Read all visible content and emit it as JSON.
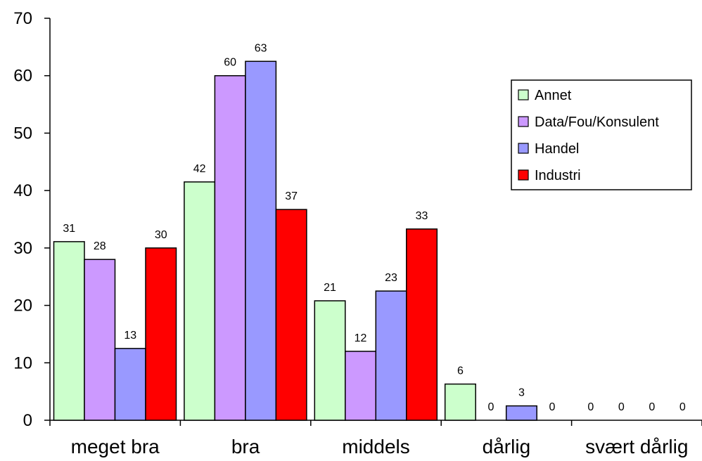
{
  "chart_data": {
    "type": "bar",
    "title": "",
    "xlabel": "",
    "ylabel": "",
    "categories": [
      "meget bra",
      "bra",
      "middels",
      "dårlig",
      "svært dårlig"
    ],
    "ylim": [
      0,
      70
    ],
    "yticks": [
      0,
      10,
      20,
      30,
      40,
      50,
      60,
      70
    ],
    "grid": false,
    "legend_position": "right",
    "series": [
      {
        "name": "Annet",
        "color": "#ccffcc",
        "values": [
          31.1,
          41.5,
          20.8,
          6.3,
          0
        ],
        "labels": [
          "31",
          "42",
          "21",
          "6",
          "0"
        ]
      },
      {
        "name": "Data/Fou/Konsulent",
        "color": "#cc99ff",
        "values": [
          28.0,
          60.0,
          12.0,
          0,
          0
        ],
        "labels": [
          "28",
          "60",
          "12",
          "0",
          "0"
        ]
      },
      {
        "name": "Handel",
        "color": "#9999ff",
        "values": [
          12.5,
          62.5,
          22.5,
          2.5,
          0
        ],
        "labels": [
          "13",
          "63",
          "23",
          "3",
          "0"
        ]
      },
      {
        "name": "Industri",
        "color": "#ff0000",
        "values": [
          30.0,
          36.7,
          33.3,
          0,
          0
        ],
        "labels": [
          "30",
          "37",
          "33",
          "0",
          "0"
        ]
      }
    ]
  }
}
